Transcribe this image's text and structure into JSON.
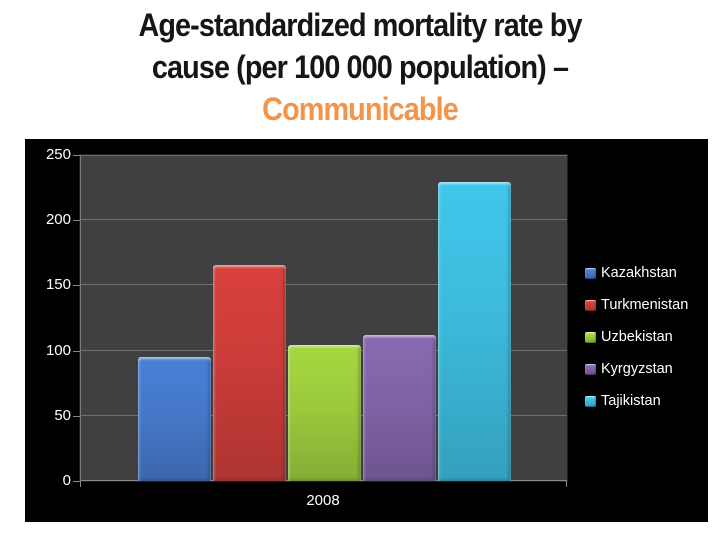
{
  "title": {
    "line1": "Age-standardized mortality rate by",
    "line2": "cause (per 100 000 population) –",
    "line3": "Communicable",
    "accent_color": "#F2954A",
    "text_color": "#161616"
  },
  "chart_data": {
    "type": "bar",
    "categories": [
      "2008"
    ],
    "series": [
      {
        "name": "Kazakhstan",
        "color": "#4578C8",
        "values": [
          95
        ]
      },
      {
        "name": "Turkmenistan",
        "color": "#CA3C39",
        "values": [
          166
        ]
      },
      {
        "name": "Uzbekistan",
        "color": "#9ACA3C",
        "values": [
          104
        ]
      },
      {
        "name": "Kyrgyzstan",
        "color": "#7F63A6",
        "values": [
          112
        ]
      },
      {
        "name": "Tajikistan",
        "color": "#3CBADC",
        "values": [
          229
        ]
      }
    ],
    "ylim": [
      0,
      250
    ],
    "yticks": [
      0,
      50,
      100,
      150,
      200,
      250
    ],
    "grid": true,
    "legend_position": "right",
    "colors": {
      "chart_background": "#000000",
      "plot_background": "#404040",
      "gridline": "#6F6F6F",
      "axis_text": "#FFFFFF",
      "legend_text": "#FFFFFF"
    }
  }
}
